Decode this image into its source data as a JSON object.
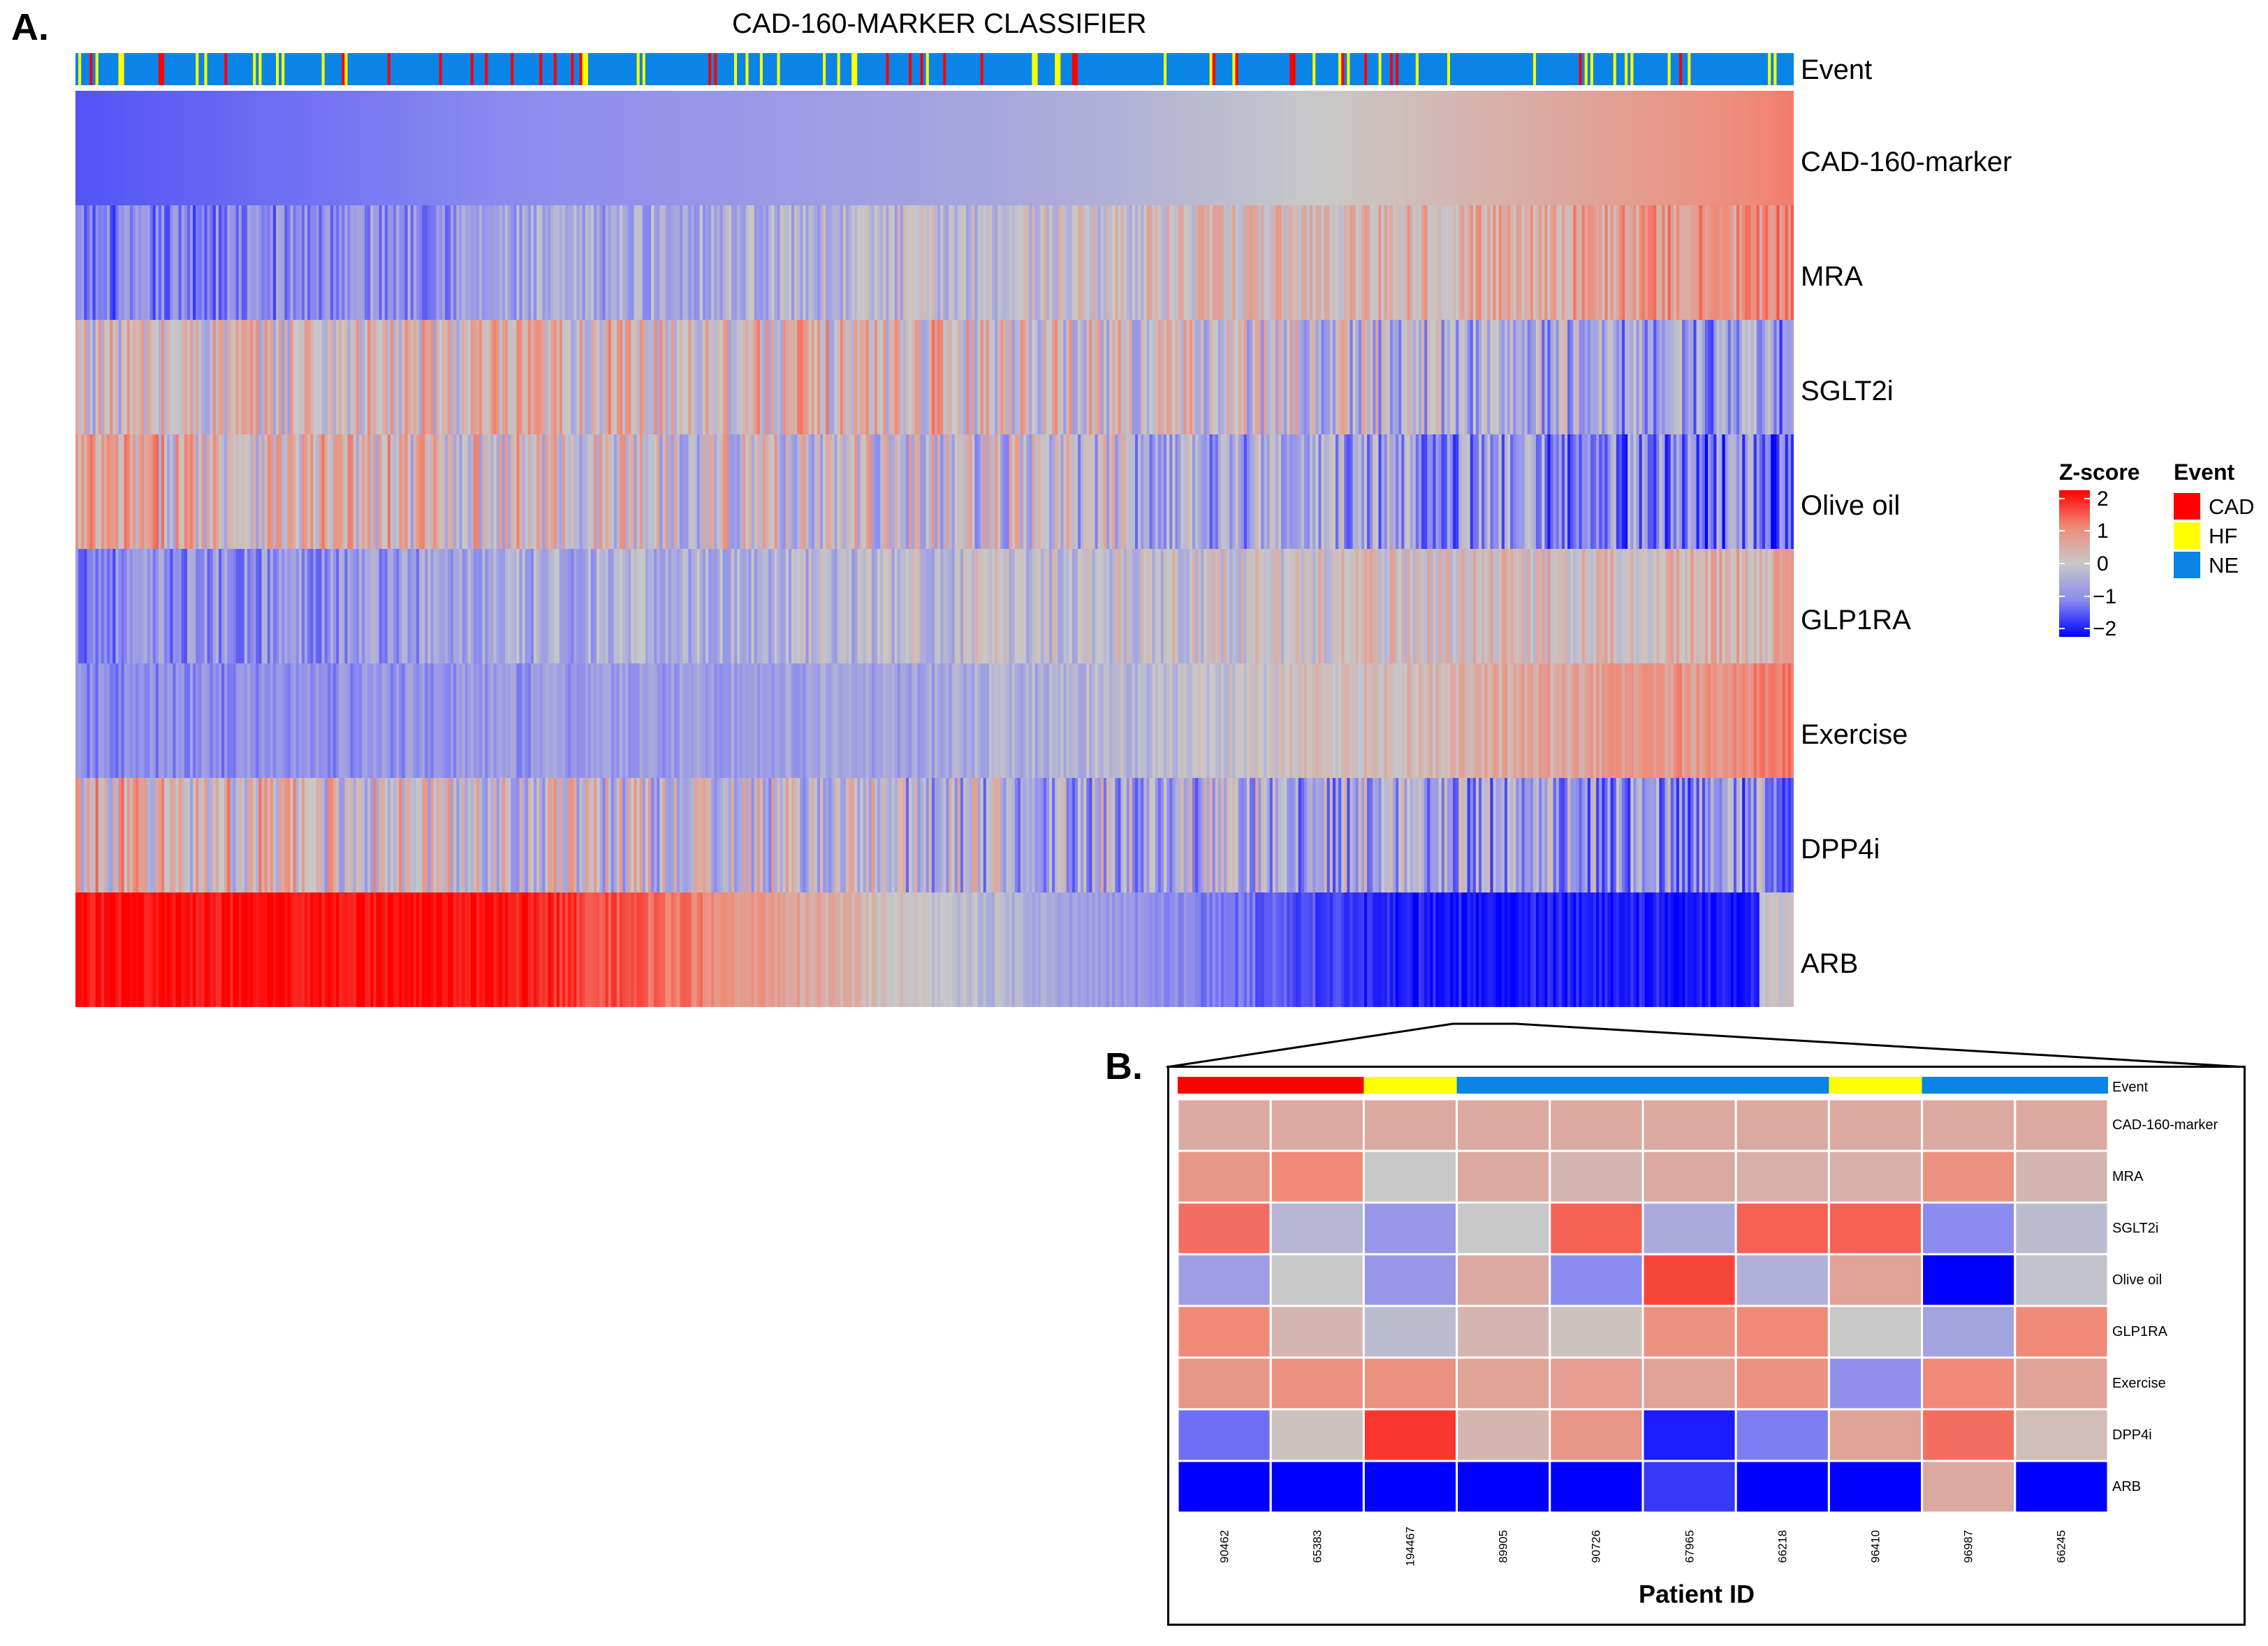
{
  "panel_a": {
    "letter": "A.",
    "title": "CAD-160-MARKER CLASSIFIER",
    "event_label": "Event",
    "rows": [
      {
        "label": "CAD-160-marker",
        "start": -1.4,
        "mid": -0.6,
        "end": 1.1,
        "noise": 0.0,
        "shape": "smooth"
      },
      {
        "label": "MRA",
        "start": -1.2,
        "mid": -0.2,
        "end": 0.9,
        "noise": 0.55,
        "shape": "ramp"
      },
      {
        "label": "SGLT2i",
        "start": 0.1,
        "mid": 0.3,
        "end": -0.8,
        "noise": 0.9,
        "shape": "ramp"
      },
      {
        "label": "Olive oil",
        "start": 0.4,
        "mid": -0.1,
        "end": -1.2,
        "noise": 0.95,
        "shape": "ramp"
      },
      {
        "label": "GLP1RA",
        "start": -1.0,
        "mid": -0.2,
        "end": 0.4,
        "noise": 0.55,
        "shape": "ramp"
      },
      {
        "label": "Exercise",
        "start": -1.0,
        "mid": -0.6,
        "end": 1.0,
        "noise": 0.35,
        "shape": "ramp"
      },
      {
        "label": "DPP4i",
        "start": 0.3,
        "mid": -0.3,
        "end": -0.8,
        "noise": 1.0,
        "shape": "ramp"
      },
      {
        "label": "ARB",
        "start": 1.9,
        "mid": -0.2,
        "end": -1.8,
        "noise": 0.25,
        "shape": "step"
      }
    ]
  },
  "legend": {
    "zscore_title": "Z-score",
    "zscore_ticks": [
      "2",
      "1",
      "0",
      "−1",
      "−2"
    ],
    "event_title": "Event",
    "event_entries": [
      {
        "label": "CAD",
        "color": "#ff0000"
      },
      {
        "label": "HF",
        "color": "#ffff00"
      },
      {
        "label": "NE",
        "color": "#0a84e6"
      }
    ]
  },
  "panel_b": {
    "letter": "B.",
    "x_title": "Patient ID",
    "event_label": "Event"
  },
  "chart_data": [
    {
      "type": "heatmap",
      "title": "CAD-160-MARKER CLASSIFIER",
      "rows": [
        "CAD-160-marker",
        "MRA",
        "SGLT2i",
        "Olive oil",
        "GLP1RA",
        "Exercise",
        "DPP4i",
        "ARB"
      ],
      "annotation": {
        "name": "Event",
        "categories": [
          "CAD",
          "HF",
          "NE"
        ]
      },
      "color_scale": {
        "name": "Z-score",
        "range": [
          -2,
          2
        ],
        "colors": [
          "#0000ff",
          "#c8c8c8",
          "#ff0000"
        ]
      },
      "columns_sorted_by": "CAD-160-marker",
      "approx_columns": 600
    },
    {
      "type": "heatmap",
      "xlabel": "Patient ID",
      "patients": [
        "90462",
        "65383",
        "194467",
        "89905",
        "90726",
        "67965",
        "66218",
        "96410",
        "96987",
        "66245"
      ],
      "events": [
        "CAD",
        "CAD",
        "HF",
        "NE",
        "NE",
        "NE",
        "NE",
        "HF",
        "NE",
        "NE"
      ],
      "rows": [
        {
          "label": "CAD-160-marker",
          "values": [
            0.5,
            0.5,
            0.5,
            0.5,
            0.5,
            0.5,
            0.5,
            0.5,
            0.5,
            0.5
          ]
        },
        {
          "label": "MRA",
          "values": [
            0.8,
            1.0,
            0.0,
            0.5,
            0.3,
            0.5,
            0.4,
            0.4,
            0.9,
            0.3
          ]
        },
        {
          "label": "SGLT2i",
          "values": [
            1.2,
            -0.3,
            -0.8,
            0.0,
            1.3,
            -0.5,
            1.3,
            1.3,
            -1.0,
            -0.2
          ]
        },
        {
          "label": "Olive oil",
          "values": [
            -0.7,
            0.0,
            -0.8,
            0.5,
            -1.0,
            1.5,
            -0.4,
            0.6,
            -2.0,
            -0.1
          ]
        },
        {
          "label": "GLP1RA",
          "values": [
            1.0,
            0.3,
            -0.2,
            0.3,
            0.1,
            0.9,
            1.0,
            0.0,
            -0.6,
            1.0
          ]
        },
        {
          "label": "Exercise",
          "values": [
            0.8,
            0.9,
            0.9,
            0.6,
            0.7,
            0.6,
            0.9,
            -0.9,
            1.0,
            0.6
          ]
        },
        {
          "label": "DPP4i",
          "values": [
            -1.2,
            0.1,
            1.6,
            0.3,
            0.8,
            -1.8,
            -1.1,
            0.6,
            1.2,
            0.2
          ]
        },
        {
          "label": "ARB",
          "values": [
            -2.0,
            -2.0,
            -2.0,
            -2.0,
            -2.0,
            -1.6,
            -2.0,
            -2.0,
            0.5,
            -2.0
          ]
        }
      ],
      "color_scale": {
        "range": [
          -2,
          2
        ]
      }
    }
  ]
}
